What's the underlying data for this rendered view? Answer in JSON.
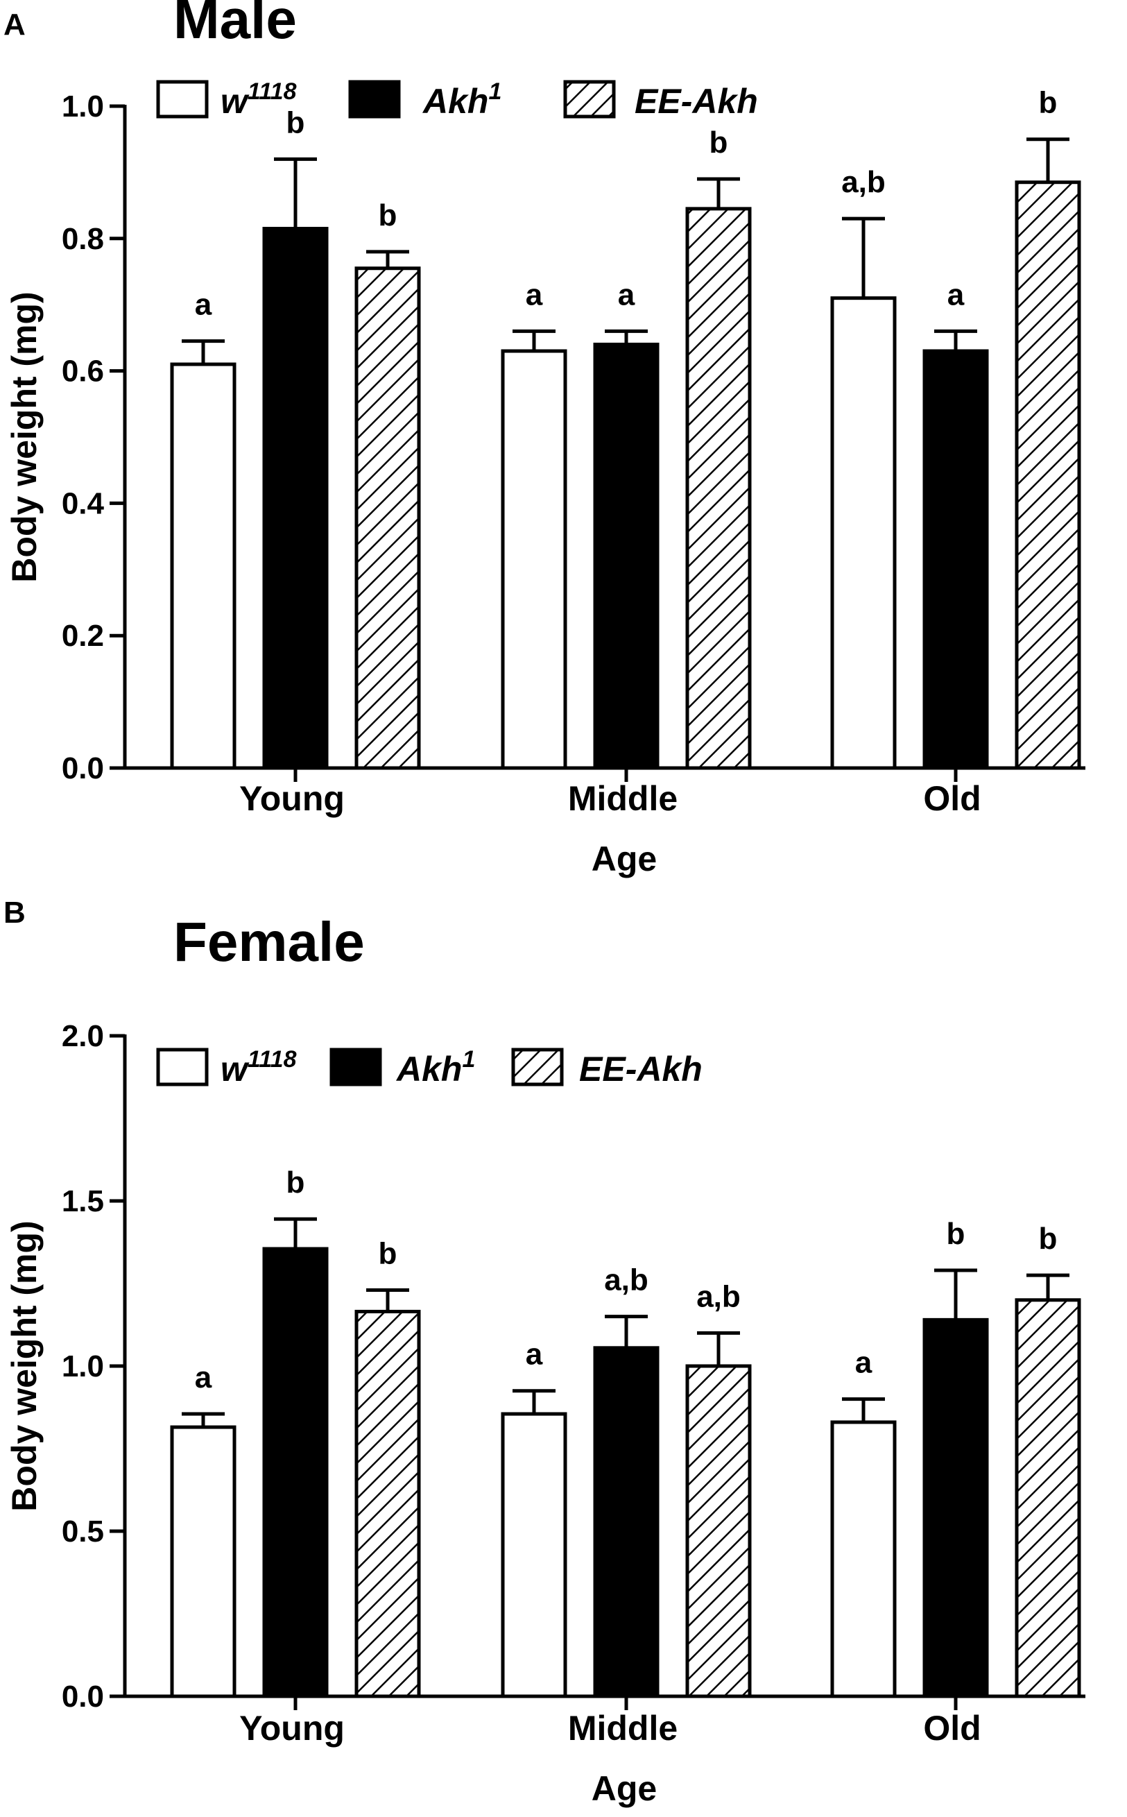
{
  "chart_data": [
    {
      "type": "bar",
      "panel_label": "A",
      "title": "Male",
      "xlabel": "Age",
      "ylabel": "Body weight (mg)",
      "ylim": [
        0,
        1.0
      ],
      "yticks": [
        "0.0",
        "0.2",
        "0.4",
        "0.6",
        "0.8",
        "1.0"
      ],
      "categories": [
        "Young",
        "Middle",
        "Old"
      ],
      "series": [
        {
          "name": "w",
          "sup": "1118",
          "style": "white",
          "values": [
            0.61,
            0.63,
            0.71
          ],
          "errors": [
            0.035,
            0.03,
            0.12
          ],
          "labels": [
            "a",
            "a",
            "a,b"
          ]
        },
        {
          "name": "Akh",
          "sup": "1",
          "style": "black",
          "values": [
            0.815,
            0.64,
            0.63
          ],
          "errors": [
            0.105,
            0.02,
            0.03
          ],
          "labels": [
            "b",
            "a",
            "a"
          ]
        },
        {
          "name": "EE-Akh",
          "sup": "",
          "style": "hatch",
          "values": [
            0.755,
            0.845,
            0.885
          ],
          "errors": [
            0.025,
            0.045,
            0.065
          ],
          "labels": [
            "b",
            "b",
            "b"
          ]
        }
      ]
    },
    {
      "type": "bar",
      "panel_label": "B",
      "title": "Female",
      "xlabel": "Age",
      "ylabel": "Body weight (mg)",
      "ylim": [
        0,
        2.0
      ],
      "yticks": [
        "0.0",
        "0.5",
        "1.0",
        "1.5",
        "2.0"
      ],
      "categories": [
        "Young",
        "Middle",
        "Old"
      ],
      "series": [
        {
          "name": "w",
          "sup": "1118",
          "style": "white",
          "values": [
            0.815,
            0.855,
            0.83
          ],
          "errors": [
            0.04,
            0.07,
            0.07
          ],
          "labels": [
            "a",
            "a",
            "a"
          ]
        },
        {
          "name": "Akh",
          "sup": "1",
          "style": "black",
          "values": [
            1.355,
            1.055,
            1.14
          ],
          "errors": [
            0.09,
            0.095,
            0.15
          ],
          "labels": [
            "b",
            "a,b",
            "b"
          ]
        },
        {
          "name": "EE-Akh",
          "sup": "",
          "style": "hatch",
          "values": [
            1.165,
            1.0,
            1.2
          ],
          "errors": [
            0.065,
            0.1,
            0.075
          ],
          "labels": [
            "b",
            "a,b",
            "b"
          ]
        }
      ]
    }
  ]
}
